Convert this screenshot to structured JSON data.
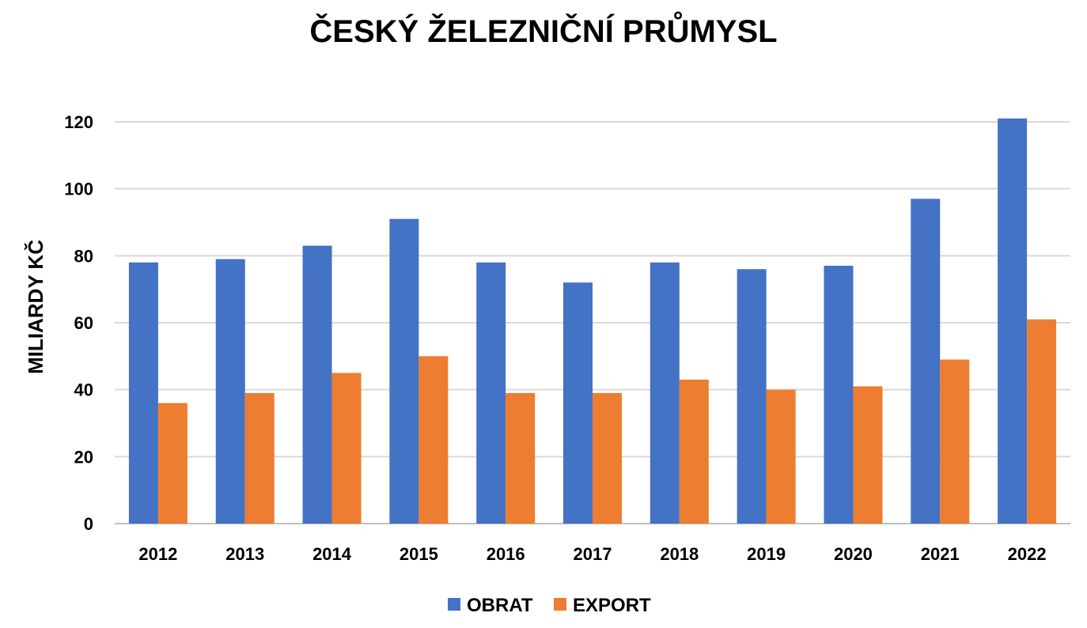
{
  "chart_data": {
    "type": "bar",
    "title": "ČESKÝ ŽELEZNIČNÍ PRŮMYSL",
    "xlabel": "",
    "ylabel": "MILIARDY KČ",
    "ylim": [
      0,
      120
    ],
    "yticks": [
      "0",
      "20",
      "40",
      "60",
      "80",
      "100",
      "120"
    ],
    "categories": [
      "2012",
      "2013",
      "2014",
      "2015",
      "2016",
      "2017",
      "2018",
      "2019",
      "2020",
      "2021",
      "2022"
    ],
    "series": [
      {
        "name": "OBRAT",
        "color": "#4472C4",
        "values": [
          78,
          79,
          83,
          91,
          78,
          72,
          78,
          76,
          77,
          97,
          121
        ]
      },
      {
        "name": "EXPORT",
        "color": "#ED7D31",
        "values": [
          36,
          39,
          45,
          50,
          39,
          39,
          43,
          40,
          41,
          49,
          61
        ]
      }
    ],
    "grid": true,
    "legend_position": "bottom"
  }
}
